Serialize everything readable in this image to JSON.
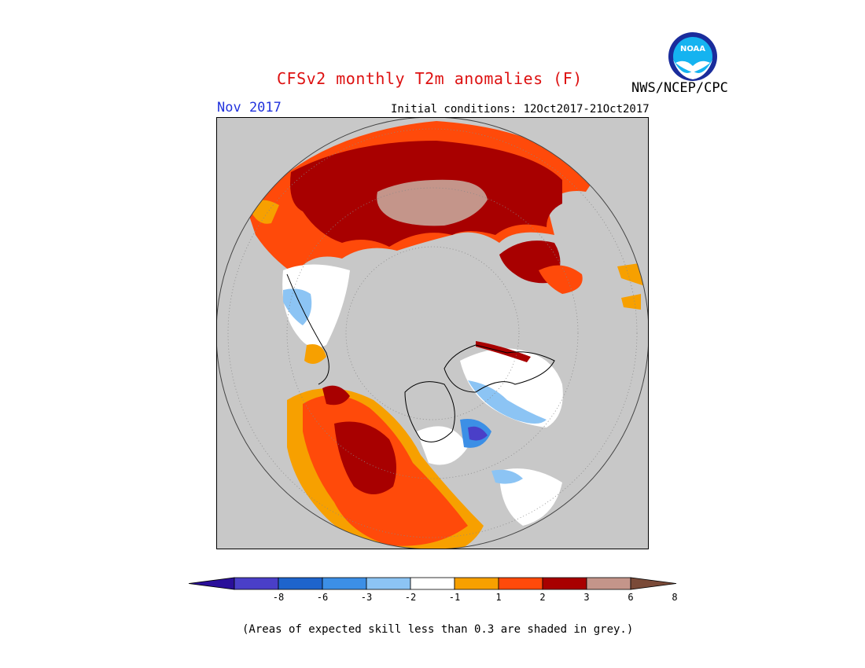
{
  "header": {
    "title": "CFSv2 monthly T2m anomalies (F)",
    "agency": "NWS/NCEP/CPC",
    "month": "Nov 2017",
    "initial_conditions": "Initial conditions: 12Oct2017-21Oct2017"
  },
  "logo": {
    "text": "NOAA",
    "icon": "noaa-logo-icon"
  },
  "map": {
    "projection": "north-polar-stereographic",
    "skill_mask_color": "#c8c8c8"
  },
  "legend": {
    "colors": [
      "#2a0f9a",
      "#4a3fc8",
      "#1e64cc",
      "#3c8fe6",
      "#8cc4f4",
      "#ffffff",
      "#f7a000",
      "#ff4a0a",
      "#a80000",
      "#c4958a",
      "#7a4a38"
    ],
    "ticks": [
      "-8",
      "-6",
      "-3",
      "-2",
      "-1",
      "1",
      "2",
      "3",
      "6",
      "8"
    ]
  },
  "footnote": "(Areas of expected skill less than 0.3 are shaded in grey.)"
}
